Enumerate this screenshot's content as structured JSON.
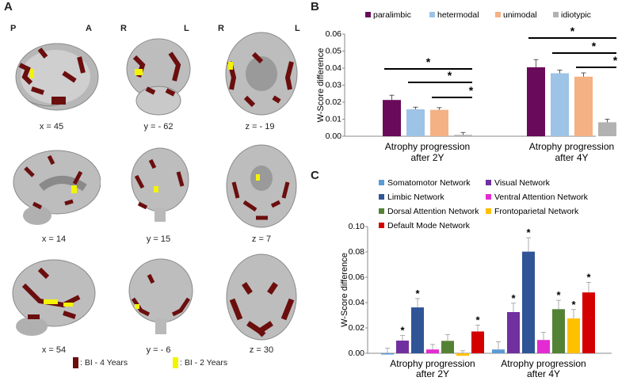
{
  "panel_a": {
    "letter": "A",
    "orientation_labels": [
      "P",
      "A",
      "R",
      "L",
      "R",
      "L"
    ],
    "coords": [
      [
        "x = 45",
        "y = - 62",
        "z = - 19"
      ],
      [
        "x = 14",
        "y = 15",
        "z = 7"
      ],
      [
        "x = 54",
        "y = - 6",
        "z = 30"
      ]
    ],
    "legend": [
      {
        "label": ": BI - 4 Years",
        "color": "#6b0e0e"
      },
      {
        "label": ": BI - 2 Years",
        "color": "#f4f400"
      }
    ]
  },
  "panel_b": {
    "letter": "B"
  },
  "panel_c": {
    "letter": "C"
  },
  "chart_data": [
    {
      "type": "bar",
      "ylabel": "W-Score difference",
      "ylim": [
        0,
        0.06
      ],
      "yticks": [
        "0.00",
        "0.01",
        "0.02",
        "0.03",
        "0.04",
        "0.05",
        "0.06"
      ],
      "categories": [
        "Atrophy progression after 2Y",
        "Atrophy progression after 4Y"
      ],
      "category_lines": [
        [
          "Atrophy progression",
          "after 2Y"
        ],
        [
          "Atrophy progression",
          "after 4Y"
        ]
      ],
      "series": [
        {
          "name": "paralimbic",
          "color": "#6a0a5b",
          "values": [
            0.0213,
            0.0405
          ],
          "errors": [
            0.0028,
            0.0045
          ]
        },
        {
          "name": "hetermodal",
          "color": "#9dc3e6",
          "values": [
            0.0158,
            0.037
          ],
          "errors": [
            0.0013,
            0.0018
          ]
        },
        {
          "name": "unimodal",
          "color": "#f4b183",
          "values": [
            0.0155,
            0.035
          ],
          "errors": [
            0.0013,
            0.0022
          ]
        },
        {
          "name": "idiotypic",
          "color": "#b2b2b2",
          "values": [
            0.0008,
            0.0082
          ],
          "errors": [
            0.0014,
            0.0018
          ]
        }
      ],
      "significance": [
        {
          "group": 0,
          "from": 0,
          "to": 3,
          "label": "*"
        },
        {
          "group": 0,
          "from": 1,
          "to": 3,
          "label": "*"
        },
        {
          "group": 0,
          "from": 2,
          "to": 3,
          "label": "*"
        },
        {
          "group": 1,
          "from": 0,
          "to": 3,
          "label": "*"
        },
        {
          "group": 1,
          "from": 1,
          "to": 3,
          "label": "*"
        },
        {
          "group": 1,
          "from": 2,
          "to": 3,
          "label": "*"
        }
      ]
    },
    {
      "type": "bar",
      "ylabel": "W-Score difference",
      "ylim": [
        0,
        0.1
      ],
      "yticks": [
        "0.00",
        "0.02",
        "0.04",
        "0.06",
        "0.08",
        "0.10"
      ],
      "categories": [
        "Atrophy progression after 2Y",
        "Atrophy progression after 4Y"
      ],
      "category_lines": [
        [
          "Atrophy progression",
          "after 2Y"
        ],
        [
          "Atrophy progression",
          "after 4Y"
        ]
      ],
      "series": [
        {
          "name": "Somatomotor Network",
          "color": "#5b9bd5",
          "values": [
            -0.001,
            0.003
          ],
          "errors": [
            0.005,
            0.006
          ],
          "sig": [
            false,
            false
          ]
        },
        {
          "name": "Visual Network",
          "color": "#7030a0",
          "values": [
            0.01,
            0.0325
          ],
          "errors": [
            0.004,
            0.007
          ],
          "sig": [
            true,
            true
          ]
        },
        {
          "name": "Limbic Network",
          "color": "#2f5597",
          "values": [
            0.0362,
            0.0802
          ],
          "errors": [
            0.007,
            0.011
          ],
          "sig": [
            true,
            true
          ]
        },
        {
          "name": "Ventral Attention Network",
          "color": "#e32bd1",
          "values": [
            0.003,
            0.0105
          ],
          "errors": [
            0.004,
            0.006
          ],
          "sig": [
            false,
            false
          ]
        },
        {
          "name": "Dorsal Attention Network",
          "color": "#548235",
          "values": [
            0.0098,
            0.0348
          ],
          "errors": [
            0.005,
            0.007
          ],
          "sig": [
            false,
            true
          ]
        },
        {
          "name": "Frontoparietal Network",
          "color": "#ffc000",
          "values": [
            -0.002,
            0.0275
          ],
          "errors": [
            0.004,
            0.007
          ],
          "sig": [
            false,
            true
          ]
        },
        {
          "name": "Default Mode Network",
          "color": "#d40000",
          "values": [
            0.0172,
            0.048
          ],
          "errors": [
            0.005,
            0.008
          ],
          "sig": [
            true,
            true
          ]
        }
      ]
    }
  ]
}
